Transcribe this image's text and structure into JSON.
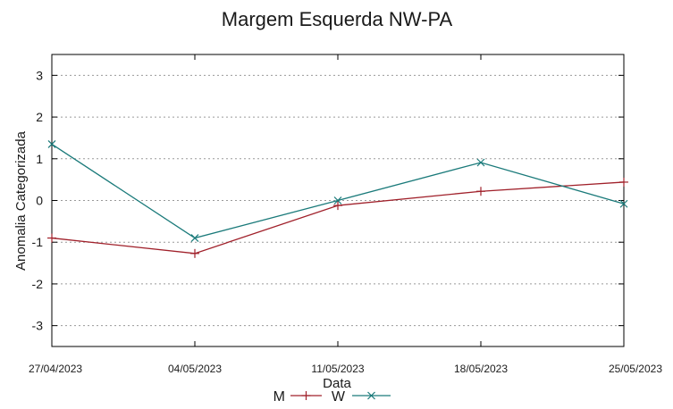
{
  "chart_data": {
    "type": "line",
    "title": "Margem Esquerda NW-PA",
    "xlabel": "Data",
    "ylabel": "Anomalia Categorizada",
    "categories": [
      "27/04/2023",
      "04/05/2023",
      "11/05/2023",
      "18/05/2023",
      "25/05/2023"
    ],
    "ylim": [
      -3.5,
      3.5
    ],
    "yticks": [
      -3,
      -2,
      -1,
      0,
      1,
      2,
      3
    ],
    "grid": true,
    "legend_position": "bottom-center",
    "series": [
      {
        "name": "M",
        "color": "#a0202a",
        "marker": "plus",
        "values": [
          -0.9,
          -1.27,
          -0.12,
          0.22,
          0.44
        ]
      },
      {
        "name": "W",
        "color": "#1a7a7a",
        "marker": "x",
        "values": [
          1.35,
          -0.9,
          0.0,
          0.91,
          -0.08
        ]
      }
    ]
  }
}
